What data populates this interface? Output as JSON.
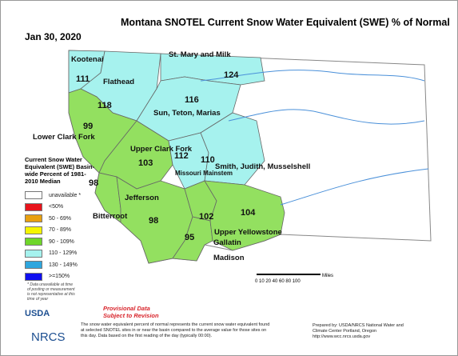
{
  "header": {
    "title": "Montana SNOTEL Current Snow Water Equivalent (SWE) % of Normal",
    "date": "Jan 30, 2020"
  },
  "basins": [
    {
      "name": "Kootenai",
      "value": "111",
      "color": "#a6f2ee"
    },
    {
      "name": "Flathead",
      "value": "118",
      "color": "#a6f2ee"
    },
    {
      "name": "St. Mary and Milk",
      "value": "124",
      "color": "#a6f2ee"
    },
    {
      "name": "Sun, Teton, Marias",
      "value": "116",
      "color": "#a6f2ee"
    },
    {
      "name": "Lower Clark Fork",
      "value": "99",
      "color": "#93e060"
    },
    {
      "name": "Upper Clark Fork",
      "value": "103",
      "color": "#93e060"
    },
    {
      "name": "Missouri Mainstem",
      "value": "112",
      "color": "#a6f2ee"
    },
    {
      "name": "Smith, Judith, Musselshell",
      "value": "110",
      "color": "#a6f2ee"
    },
    {
      "name": "Bitterroot",
      "value": "98",
      "color": "#93e060"
    },
    {
      "name": "Jefferson",
      "value": "98",
      "color": "#93e060"
    },
    {
      "name": "Gallatin",
      "value": "102",
      "color": "#93e060"
    },
    {
      "name": "Madison",
      "value": "95",
      "color": "#93e060"
    },
    {
      "name": "Upper Yellowstone",
      "value": "104",
      "color": "#93e060"
    }
  ],
  "legend": {
    "title": "Current Snow Water Equivalent (SWE) Basin-wide Percent of 1981-2010 Median",
    "items": [
      {
        "label": "unavailable *",
        "color": "#ffffff"
      },
      {
        "label": "<50%",
        "color": "#e8141c"
      },
      {
        "label": "50 - 69%",
        "color": "#e8a010"
      },
      {
        "label": "70 - 89%",
        "color": "#f5f500"
      },
      {
        "label": "90 - 109%",
        "color": "#6fd62a"
      },
      {
        "label": "110 - 129%",
        "color": "#a6f2ee"
      },
      {
        "label": "130 - 149%",
        "color": "#2ea6de"
      },
      {
        "label": ">=150%",
        "color": "#1010f0"
      }
    ],
    "note": "* Data unavailable at time of posting or measurement is not representative at this time of year"
  },
  "scale": {
    "ticks": "0 10 20 40 60 80 100",
    "unit": "Miles"
  },
  "footer": {
    "usda": "USDA",
    "nrcs": "NRCS",
    "provisional": "Provisional Data Subject to Revision",
    "description": "The snow water equivalent percent of normal represents the current snow water equivalent found at selected SNOTEL sites in or near the basin compared to the average value for those sites on this day. Data based on the first reading of the day (typically 00:00).",
    "prepared": "Prepared by: USDA/NRCS National Water and Climate Center Portland, Oregon http://www.wcc.nrcs.usda.gov"
  }
}
